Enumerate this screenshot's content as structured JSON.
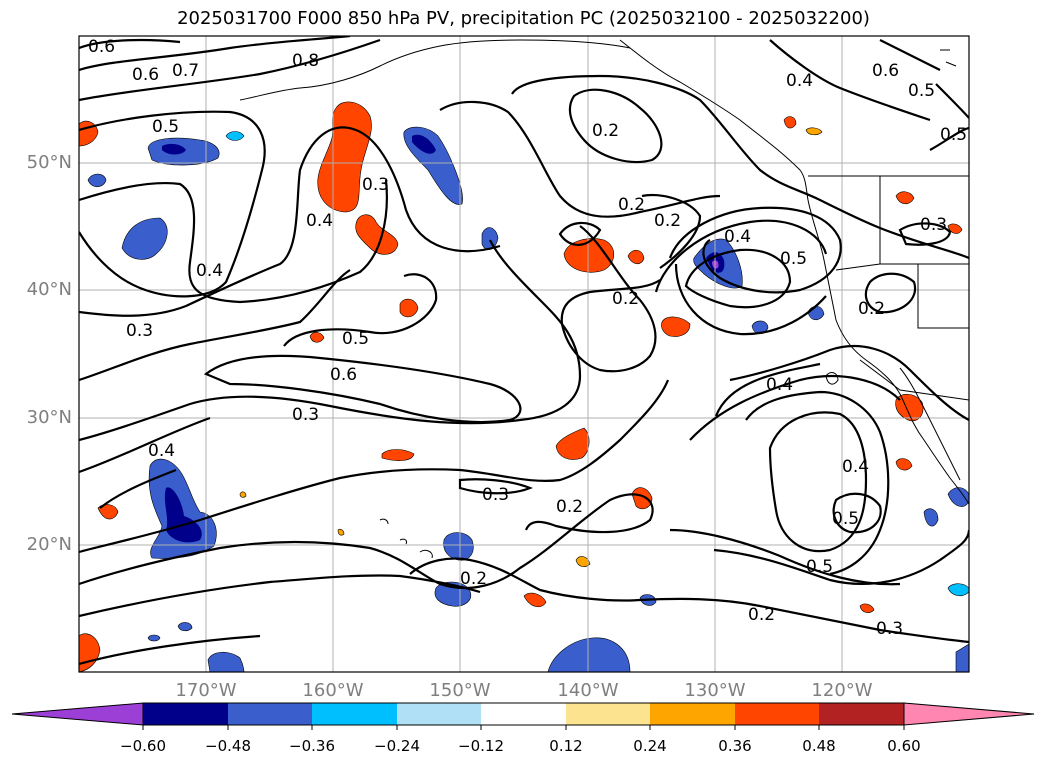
{
  "title": "2025031700 F000 850 hPa PV, precipitation PC (2025032100 - 2025032200)",
  "axes": {
    "lon_ticks": [
      "170°W",
      "160°W",
      "150°W",
      "140°W",
      "130°W",
      "120°W"
    ],
    "lat_ticks": [
      "50°N",
      "40°N",
      "30°N",
      "20°N"
    ],
    "label_color": "#7f7f7f",
    "grid": true
  },
  "contour_labels": [
    "0.6",
    "0.7",
    "0.8",
    "0.6",
    "0.5",
    "0.4",
    "0.5",
    "0.5",
    "0.6",
    "0.3",
    "0.4",
    "0.2",
    "0.2",
    "0.4",
    "0.5",
    "0.3",
    "0.2",
    "0.4",
    "0.3",
    "0.5",
    "0.6",
    "0.3",
    "0.4",
    "0.3",
    "0.2",
    "0.2",
    "0.4",
    "0.5",
    "0.5",
    "0.2",
    "0.3",
    "0.2",
    "0.4",
    "0.2"
  ],
  "colorbar": {
    "ticks": [
      "−0.60",
      "−0.48",
      "−0.36",
      "−0.24",
      "−0.12",
      "0.12",
      "0.24",
      "0.36",
      "0.48",
      "0.60"
    ],
    "colors": [
      "#9b3fd6",
      "#00008b",
      "#3a5fcd",
      "#00bfff",
      "#b0e0f6",
      "#ffffff",
      "#fbe38f",
      "#ffa500",
      "#ff4500",
      "#b22222",
      "#ff86b0"
    ]
  },
  "fill_colors": {
    "neg_light": "#00bfff",
    "neg_mid": "#3a5fcd",
    "neg_dark": "#00008b",
    "neg_min": "#9b3fd6",
    "pos_light": "#fbe38f",
    "pos_mid": "#ffa500",
    "pos_strong": "#ff4500",
    "pos_max": "#b22222"
  }
}
